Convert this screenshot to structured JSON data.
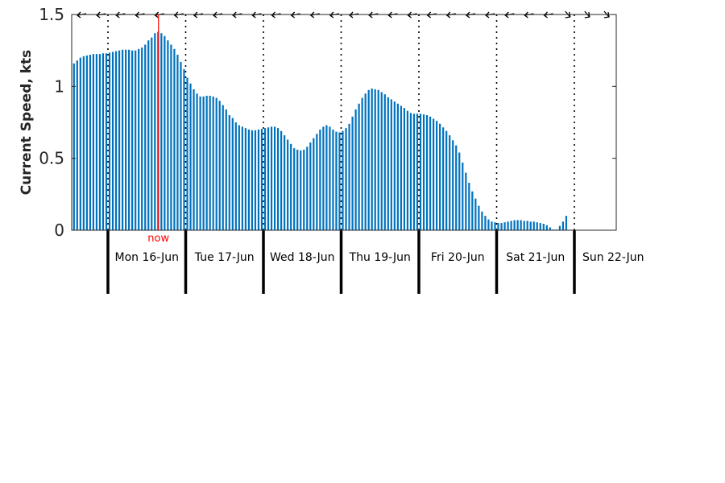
{
  "chart_data": {
    "type": "bar",
    "title": "",
    "xlabel": "",
    "ylabel": "Current Speed, kts",
    "ylim": [
      0,
      1.5
    ],
    "yticks": [
      0,
      0.5,
      1,
      1.5
    ],
    "ytick_labels": [
      "0",
      "0.5",
      "1",
      "1.5"
    ],
    "grid": false,
    "bar_color": "#0072bd",
    "now_color": "#ff0000",
    "now_label": "now",
    "now_hour": 15.6,
    "day_labels": [
      "Mon 16-Jun",
      "Tue 17-Jun",
      "Wed 18-Jun",
      "Thu 19-Jun",
      "Fri 20-Jun",
      "Sat 21-Jun",
      "Sun 22-Jun"
    ],
    "x_start_hour": -10.5,
    "hours_per_bar": 1,
    "values": [
      1.16,
      1.18,
      1.2,
      1.21,
      1.215,
      1.22,
      1.225,
      1.225,
      1.225,
      1.23,
      1.23,
      1.235,
      1.24,
      1.245,
      1.25,
      1.255,
      1.255,
      1.255,
      1.25,
      1.25,
      1.26,
      1.27,
      1.29,
      1.32,
      1.34,
      1.37,
      1.38,
      1.37,
      1.35,
      1.32,
      1.29,
      1.26,
      1.22,
      1.17,
      1.12,
      1.06,
      1.02,
      0.98,
      0.95,
      0.93,
      0.93,
      0.935,
      0.935,
      0.93,
      0.92,
      0.9,
      0.87,
      0.84,
      0.8,
      0.78,
      0.75,
      0.73,
      0.72,
      0.71,
      0.7,
      0.695,
      0.695,
      0.7,
      0.705,
      0.71,
      0.715,
      0.72,
      0.72,
      0.71,
      0.69,
      0.66,
      0.63,
      0.6,
      0.57,
      0.56,
      0.555,
      0.56,
      0.58,
      0.61,
      0.64,
      0.67,
      0.7,
      0.72,
      0.73,
      0.72,
      0.7,
      0.685,
      0.68,
      0.69,
      0.71,
      0.74,
      0.79,
      0.84,
      0.88,
      0.92,
      0.95,
      0.975,
      0.985,
      0.98,
      0.975,
      0.96,
      0.945,
      0.925,
      0.91,
      0.895,
      0.88,
      0.865,
      0.85,
      0.83,
      0.815,
      0.81,
      0.81,
      0.81,
      0.805,
      0.8,
      0.79,
      0.775,
      0.76,
      0.74,
      0.715,
      0.69,
      0.66,
      0.625,
      0.59,
      0.54,
      0.47,
      0.4,
      0.33,
      0.27,
      0.22,
      0.17,
      0.13,
      0.1,
      0.075,
      0.06,
      0.055,
      0.05,
      0.05,
      0.055,
      0.06,
      0.065,
      0.07,
      0.07,
      0.07,
      0.065,
      0.065,
      0.06,
      0.06,
      0.055,
      0.05,
      0.045,
      0.035,
      0.02,
      0.005,
      0.005,
      0.03,
      0.06,
      0.1
    ],
    "direction_arrows": 28
  }
}
